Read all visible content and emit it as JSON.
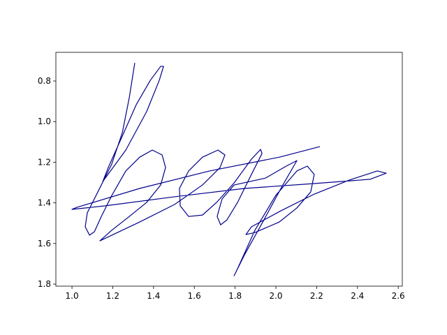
{
  "chart_data": {
    "type": "line",
    "color": "#00008b",
    "x": [
      1.151,
      1.264,
      1.366,
      1.428,
      1.449,
      1.435,
      1.384,
      1.315,
      1.247,
      1.178,
      1.151,
      null,
      1.308,
      1.281,
      1.247,
      1.195,
      1.127,
      1.075,
      1.065,
      1.086,
      1.11,
      1.144,
      1.195,
      1.264,
      1.332,
      1.394,
      1.442,
      1.459,
      1.435,
      1.366,
      1.281,
      1.195,
      1.137,
      1.332,
      1.503,
      1.64,
      1.726,
      1.75,
      1.716,
      1.64,
      1.572,
      1.527,
      1.531,
      1.572,
      1.64,
      1.709,
      1.795,
      1.88,
      1.925,
      1.932,
      1.88,
      1.812,
      1.76,
      1.729,
      1.712,
      1.736,
      1.795,
      1.949,
      2.051,
      2.103,
      2.034,
      1.932,
      1.846,
      1.795,
      1.812,
      1.897,
      1.999,
      2.103,
      2.154,
      2.188,
      2.171,
      2.103,
      2.017,
      1.897,
      1.853,
      1.88,
      2.017,
      2.188,
      2.36,
      2.497,
      2.541,
      2.462,
      2.188,
      1.846,
      1.503,
      1.161,
      1.0,
      1.024,
      1.332,
      1.675,
      2.017,
      2.216
    ],
    "values": [
      1.295,
      1.14,
      0.951,
      0.797,
      0.728,
      0.728,
      0.797,
      0.917,
      1.071,
      1.226,
      1.295,
      null,
      0.711,
      0.882,
      1.054,
      1.209,
      1.346,
      1.449,
      1.518,
      1.559,
      1.542,
      1.467,
      1.364,
      1.243,
      1.175,
      1.14,
      1.164,
      1.226,
      1.312,
      1.398,
      1.467,
      1.535,
      1.587,
      1.494,
      1.408,
      1.312,
      1.226,
      1.164,
      1.14,
      1.175,
      1.243,
      1.329,
      1.415,
      1.467,
      1.46,
      1.398,
      1.302,
      1.185,
      1.137,
      1.157,
      1.26,
      1.398,
      1.484,
      1.508,
      1.467,
      1.381,
      1.312,
      1.278,
      1.219,
      1.192,
      1.312,
      1.501,
      1.656,
      1.759,
      1.724,
      1.535,
      1.364,
      1.243,
      1.219,
      1.26,
      1.346,
      1.425,
      1.494,
      1.546,
      1.556,
      1.518,
      1.443,
      1.357,
      1.288,
      1.243,
      1.254,
      1.284,
      1.305,
      1.329,
      1.37,
      1.415,
      1.432,
      1.422,
      1.329,
      1.243,
      1.175,
      1.123
    ],
    "xlim": [
      0.921,
      2.62
    ],
    "xticks": [
      {
        "value": 1.0,
        "label": "1.0"
      },
      1.2,
      1.4,
      1.6,
      1.8,
      {
        "value": 2.0,
        "label": "2.0"
      },
      2.2,
      2.4,
      2.6
    ],
    "ylim": [
      1.81,
      0.659
    ],
    "yticks": [
      0.8,
      {
        "value": 1.0,
        "label": "1.0"
      },
      1.2,
      1.4,
      1.6,
      1.8
    ]
  }
}
